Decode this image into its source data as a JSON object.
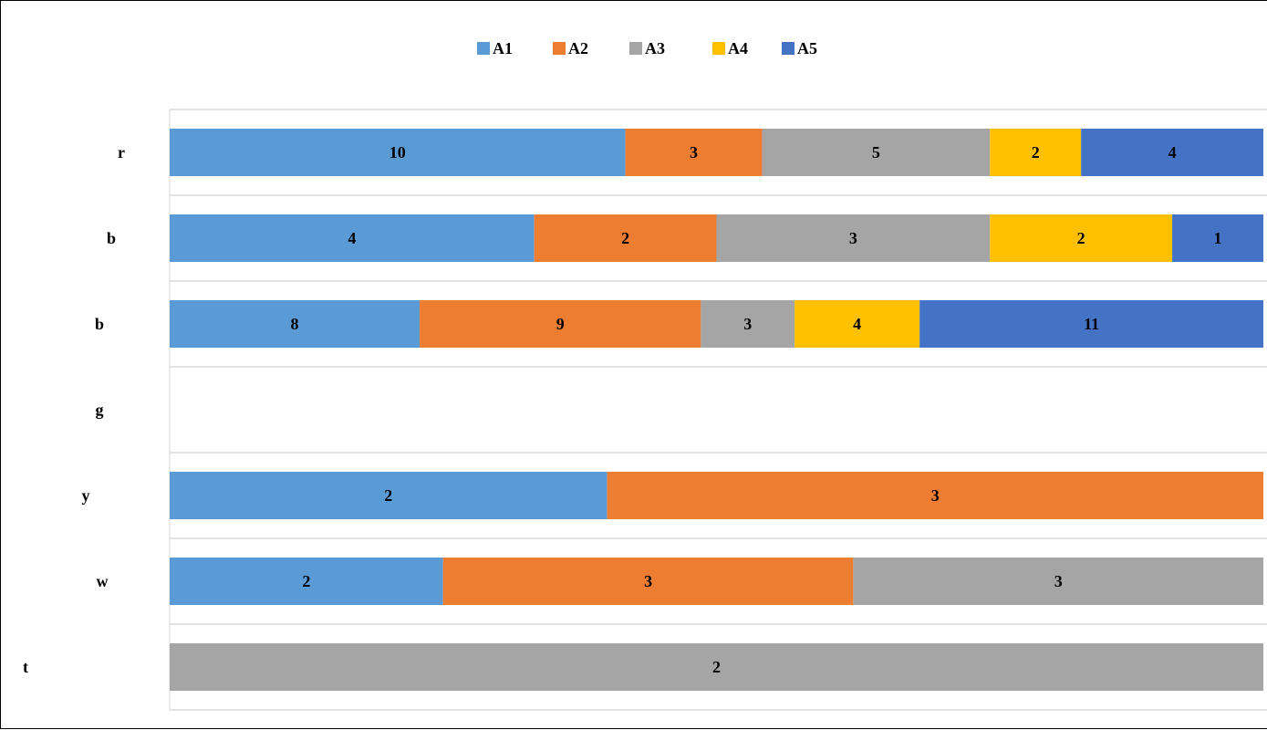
{
  "chart_data": {
    "type": "bar",
    "orientation": "horizontal",
    "stacked": "percent",
    "title": "",
    "xlabel": "",
    "ylabel": "",
    "categories": [
      "r",
      "b",
      "b",
      "g",
      "y",
      "w",
      "t"
    ],
    "series": [
      {
        "name": "A1",
        "color": "#5B9BD5",
        "values": [
          10,
          4,
          8,
          0,
          2,
          2,
          0
        ]
      },
      {
        "name": "A2",
        "color": "#ED7D31",
        "values": [
          3,
          2,
          9,
          0,
          3,
          3,
          0
        ]
      },
      {
        "name": "A3",
        "color": "#A5A5A5",
        "values": [
          5,
          3,
          3,
          0,
          0,
          3,
          2
        ]
      },
      {
        "name": "A4",
        "color": "#FFC000",
        "values": [
          2,
          2,
          4,
          0,
          0,
          0,
          0
        ]
      },
      {
        "name": "A5",
        "color": "#4472C4",
        "values": [
          4,
          1,
          11,
          0,
          0,
          0,
          0
        ]
      }
    ],
    "legend_position": "top",
    "grid": true,
    "data_labels": true
  }
}
